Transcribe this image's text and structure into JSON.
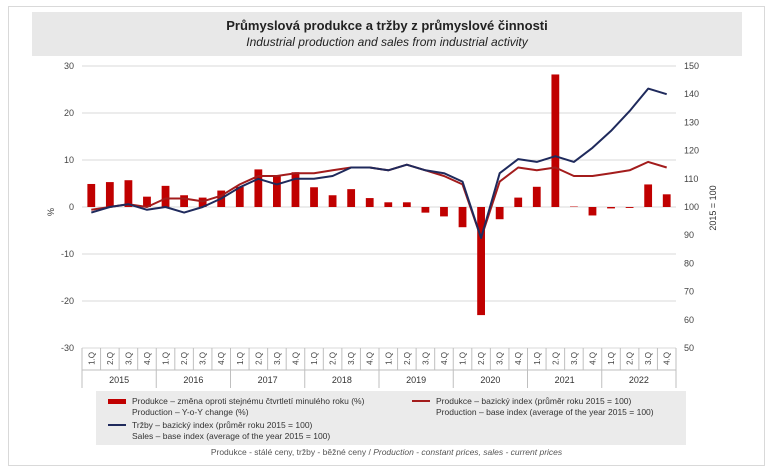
{
  "title": "Průmyslová produkce a tržby z průmyslové činnosti",
  "subtitle": "Industrial production and sales from industrial activity",
  "legend": {
    "bars_cz": "Produkce – změna oproti stejnému čtvrtletí minulého roku (%)",
    "bars_en": "Production – Y-o-Y change (%)",
    "prod_cz": "Produkce – bazický index (průměr roku 2015 = 100)",
    "prod_en": "Production – base index (average of the year 2015 = 100)",
    "sales_cz": "Tržby – bazický index (průměr roku 2015 = 100)",
    "sales_en": "Sales – base index (average of the year 2015 = 100)"
  },
  "footnote_cz": "Produkce - stálé ceny, tržby - běžné ceny / ",
  "footnote_en": "Production - constant prices, sales - current prices",
  "chart_data": {
    "type": "bar",
    "years": [
      "2015",
      "2016",
      "2017",
      "2018",
      "2019",
      "2020",
      "2021",
      "2022"
    ],
    "categories": [
      "1.Q",
      "2.Q",
      "3.Q",
      "4.Q",
      "1.Q",
      "2.Q",
      "3.Q",
      "4.Q",
      "1.Q",
      "2.Q",
      "3.Q",
      "4.Q",
      "1.Q",
      "2.Q",
      "3.Q",
      "4.Q",
      "1.Q",
      "2.Q",
      "3.Q",
      "4.Q",
      "1.Q",
      "2.Q",
      "3.Q",
      "4.Q",
      "1.Q",
      "2.Q",
      "3.Q",
      "4.Q",
      "1.Q",
      "2.Q",
      "3.Q",
      "4.Q"
    ],
    "ylabel_left": "%",
    "ylabel_right": "2015 = 100",
    "ylim_left": [
      -30,
      30
    ],
    "yticks_left": [
      -30,
      -20,
      -10,
      0,
      10,
      20,
      30
    ],
    "ylim_right": [
      50,
      150
    ],
    "yticks_right": [
      50,
      60,
      70,
      80,
      90,
      100,
      110,
      120,
      130,
      140,
      150
    ],
    "grid": "horizontal",
    "series": [
      {
        "name": "Produkce – změna oproti stejnému čtvrtletí minulého roku (%)",
        "axis": "left",
        "kind": "bar",
        "color": "#c00000",
        "values": [
          4.9,
          5.3,
          5.7,
          2.2,
          4.5,
          2.5,
          2.0,
          3.5,
          4.3,
          8.0,
          6.5,
          7.4,
          4.2,
          2.5,
          3.8,
          1.9,
          1.0,
          1.0,
          -1.2,
          -2.0,
          -4.3,
          -23.0,
          -2.6,
          2.0,
          4.3,
          28.2,
          0.1,
          -1.8,
          -0.3,
          -0.2,
          4.8,
          2.7
        ]
      },
      {
        "name": "Produkce – bazický index (průměr roku 2015 = 100)",
        "axis": "right",
        "kind": "line",
        "color": "#a31c1c",
        "values": [
          99,
          100,
          101,
          100,
          103,
          103,
          102,
          104,
          108,
          111,
          111,
          112,
          112,
          113,
          114,
          114,
          113,
          115,
          113,
          111,
          108,
          89,
          109,
          114,
          113,
          114,
          111,
          111,
          112,
          113,
          116,
          114
        ]
      },
      {
        "name": "Tržby – bazický index (průměr roku 2015 = 100)",
        "axis": "right",
        "kind": "line",
        "color": "#1f2a5c",
        "values": [
          98,
          100,
          101,
          99,
          100,
          98,
          100,
          103,
          107,
          110,
          108,
          110,
          110,
          111,
          114,
          114,
          113,
          115,
          113,
          112,
          109,
          89,
          112,
          117,
          116,
          118,
          116,
          121,
          127,
          134,
          142,
          140
        ]
      }
    ]
  }
}
